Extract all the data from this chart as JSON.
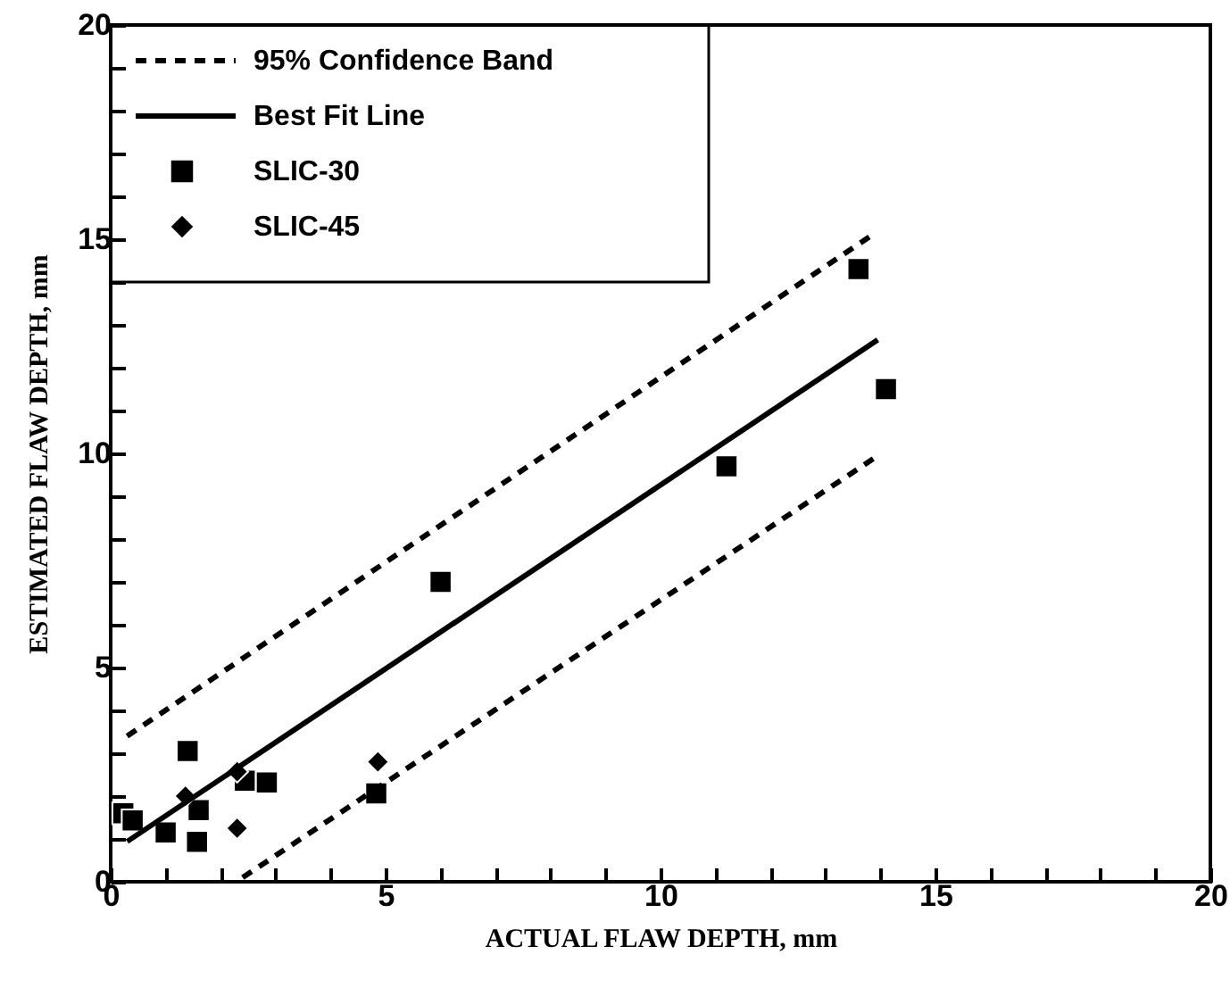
{
  "chart_data": {
    "type": "scatter",
    "xlabel": "ACTUAL FLAW DEPTH, mm",
    "ylabel": "ESTIMATED FLAW DEPTH, mm",
    "xlim": [
      0,
      20
    ],
    "ylim": [
      0,
      20
    ],
    "xticks": [
      0,
      {
        "value": 1,
        "label": null
      },
      {
        "value": 2,
        "label": null
      },
      {
        "value": 3,
        "label": null
      },
      {
        "value": 4,
        "label": null
      },
      5,
      {
        "value": 6,
        "label": null
      },
      {
        "value": 7,
        "label": null
      },
      {
        "value": 8,
        "label": null
      },
      {
        "value": 9,
        "label": null
      },
      10,
      {
        "value": 11,
        "label": null
      },
      {
        "value": 12,
        "label": null
      },
      {
        "value": 13,
        "label": null
      },
      {
        "value": 14,
        "label": null
      },
      15,
      {
        "value": 16,
        "label": null
      },
      {
        "value": 17,
        "label": null
      },
      {
        "value": 18,
        "label": null
      },
      {
        "value": 19,
        "label": null
      },
      20
    ],
    "yticks": [
      0,
      {
        "value": 1,
        "label": null
      },
      {
        "value": 2,
        "label": null
      },
      {
        "value": 3,
        "label": null
      },
      {
        "value": 4,
        "label": null
      },
      5,
      {
        "value": 6,
        "label": null
      },
      {
        "value": 7,
        "label": null
      },
      {
        "value": 8,
        "label": null
      },
      {
        "value": 9,
        "label": null
      },
      10,
      {
        "value": 11,
        "label": null
      },
      {
        "value": 12,
        "label": null
      },
      {
        "value": 13,
        "label": null
      },
      {
        "value": 14,
        "label": null
      },
      15,
      {
        "value": 16,
        "label": null
      },
      {
        "value": 17,
        "label": null
      },
      {
        "value": 18,
        "label": null
      },
      {
        "value": 19,
        "label": null
      },
      20
    ],
    "legend": "top left",
    "series": [
      {
        "name": "95% Confidence Band",
        "type": "line",
        "line_style": "dashed",
        "color": "#000000",
        "x": [
          0.3,
          13.85
        ],
        "values": [
          3.4,
          15.1
        ]
      },
      {
        "type": "line",
        "line_style": "dashed",
        "color": "#000000",
        "x": [
          2.4,
          13.9
        ],
        "values": [
          0.1,
          9.9
        ]
      },
      {
        "name": "Best Fit Line",
        "type": "line",
        "line_style": "solid",
        "color": "#000000",
        "x": [
          0.3,
          13.95
        ],
        "values": [
          0.94,
          12.65
        ]
      },
      {
        "name": "SLIC-30",
        "type": "scatter",
        "marker": "square",
        "color": "#000000",
        "x": [
          0.23,
          0.4,
          1.0,
          1.4,
          1.6,
          1.57,
          2.44,
          2.84,
          4.83,
          6.0,
          11.2,
          14.1,
          13.6
        ],
        "values": [
          1.6,
          1.43,
          1.15,
          3.05,
          1.67,
          0.93,
          2.36,
          2.32,
          2.06,
          7.0,
          9.7,
          11.5,
          14.3
        ]
      },
      {
        "name": "SLIC-45",
        "type": "scatter",
        "marker": "diamond",
        "color": "#000000",
        "x": [
          1.36,
          2.3,
          2.3,
          4.86
        ],
        "values": [
          2.0,
          2.57,
          1.25,
          2.8
        ]
      }
    ]
  }
}
